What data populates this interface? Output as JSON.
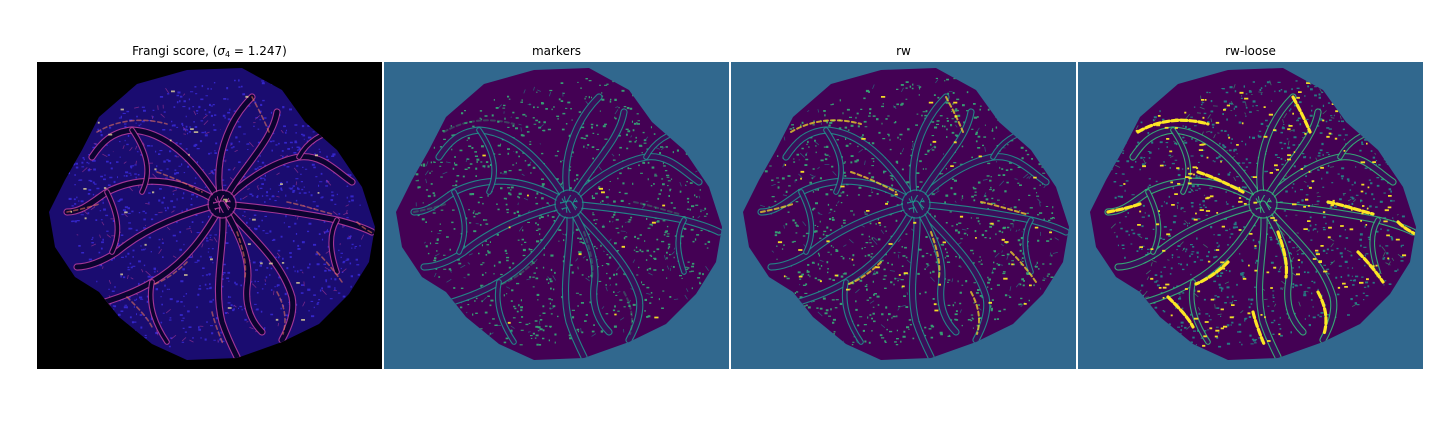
{
  "figure": {
    "panels": [
      {
        "title_prefix": "Frangi score, (",
        "title_symbol": "σ",
        "title_subscript": "4",
        "title_suffix": " = 1.247)",
        "background": "#000000",
        "colormap": "magma",
        "colors": {
          "bg": "#000000",
          "tissue": "#1a0c70",
          "dots": "#3a2bd8",
          "vessel": "#0b0330",
          "hi1": "#b23a9a",
          "hi2": "#f47a5c",
          "hi3": "#fcf0a0"
        }
      },
      {
        "title": "markers",
        "background": "#31688e",
        "colormap": "viridis",
        "colors": {
          "bg": "#31688e",
          "tissue": "#440154",
          "dots": "#35b779",
          "vessel": "#3b0f5a",
          "hi1": "#21918c",
          "hi2": "#35b779",
          "hi3": "#fde725"
        }
      },
      {
        "title": "rw",
        "background": "#31688e",
        "colormap": "viridis",
        "colors": {
          "bg": "#31688e",
          "tissue": "#440154",
          "dots": "#35b779",
          "vessel": "#3b0f5a",
          "hi1": "#21918c",
          "hi2": "#fde725",
          "hi3": "#fde725"
        }
      },
      {
        "title": "rw-loose",
        "background": "#31688e",
        "colormap": "viridis",
        "colors": {
          "bg": "#31688e",
          "tissue": "#440154",
          "dots": "#21918c",
          "vessel": "#3b0f5a",
          "hi1": "#35b779",
          "hi2": "#fde725",
          "hi3": "#fde725"
        }
      }
    ]
  }
}
